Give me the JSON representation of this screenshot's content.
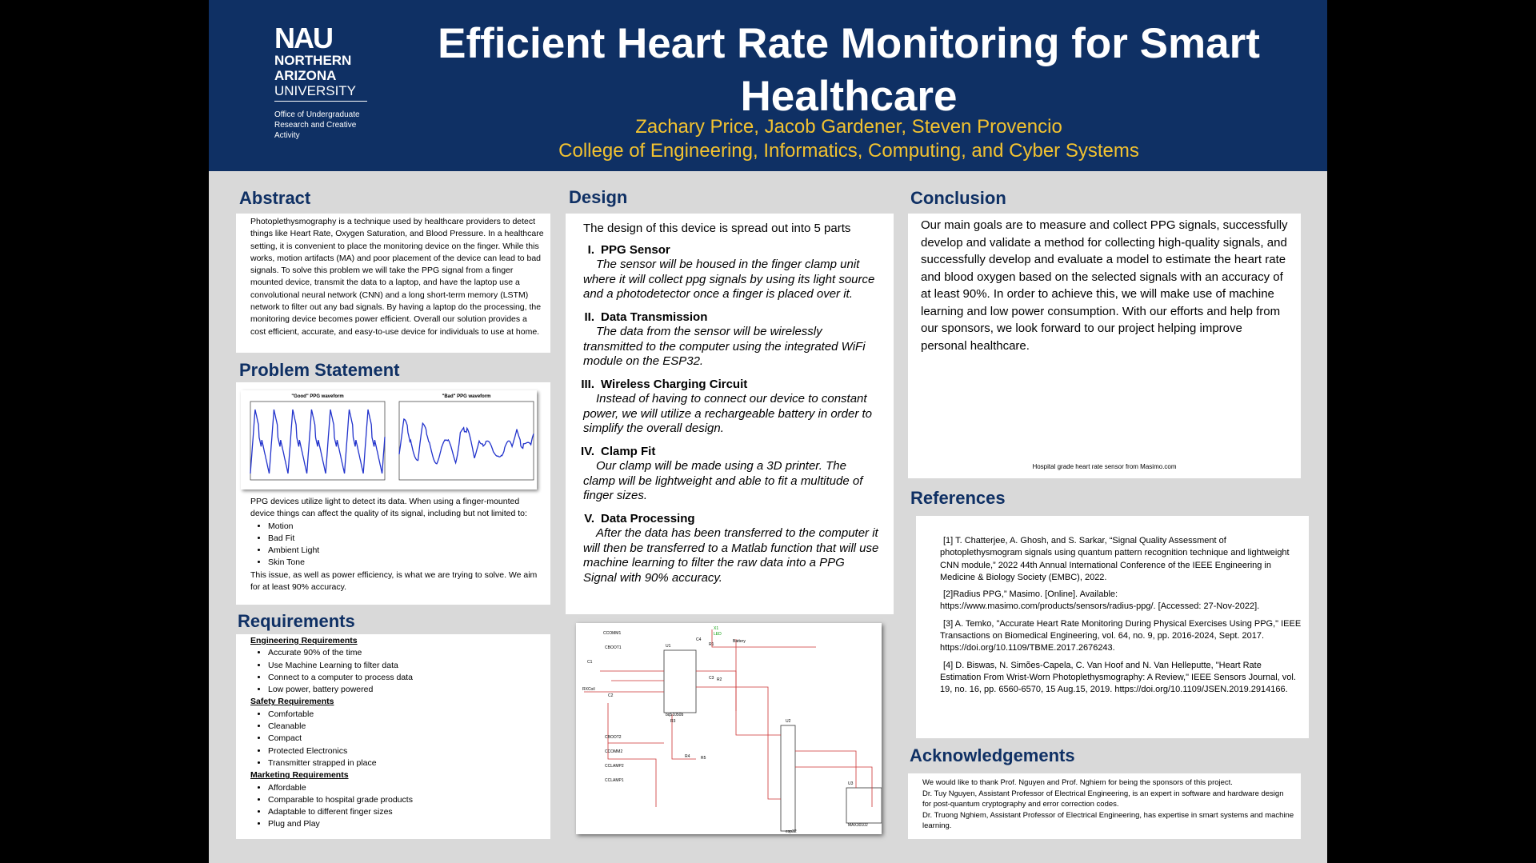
{
  "header": {
    "logo": {
      "mark": "NAU",
      "line1": "NORTHERN",
      "line2": "ARIZONA",
      "line3": "UNIVERSITY",
      "office": "Office of Undergraduate Research and Creative Activity"
    },
    "title": "Efficient Heart Rate Monitoring for Smart Healthcare",
    "authors": "Zachary Price, Jacob Gardener, Steven Provencio",
    "college": "College of Engineering, Informatics, Computing, and Cyber Systems"
  },
  "abstract": {
    "heading": "Abstract",
    "text": "Photoplethysmography is a technique used by healthcare providers to detect things like Heart Rate, Oxygen Saturation, and Blood Pressure. In a healthcare setting, it is convenient to place the monitoring device on the finger. While this works, motion artifacts (MA) and poor placement of the device can lead to bad signals. To solve this problem we will take the PPG signal from a finger mounted device, transmit the data to a laptop, and have the laptop use a convolutional neural network (CNN) and a long short-term memory (LSTM) network to filter out any bad signals. By having a laptop do the processing, the monitoring device becomes power efficient. Overall our solution provides a cost efficient, accurate, and easy-to-use device for individuals to use at home."
  },
  "problem": {
    "heading": "Problem Statement",
    "plots": [
      "\"Good\" PPG waveform",
      "\"Bad\" PPG waveform"
    ],
    "intro": "PPG devices utilize light to detect its data. When using a finger-mounted device things can affect the quality of its signal, including but not limited to:",
    "items": [
      "Motion",
      "Bad Fit",
      "Ambient Light",
      "Skin Tone"
    ],
    "outro": "This issue, as well as power efficiency, is what we are trying to solve. We aim for at least 90% accuracy."
  },
  "requirements": {
    "heading": "Requirements",
    "groups": [
      {
        "title": "Engineering Requirements",
        "items": [
          "Accurate 90% of the time",
          "Use Machine Learning to filter data",
          "Connect to a computer to process data",
          "Low power, battery powered"
        ]
      },
      {
        "title": "Safety Requirements",
        "items": [
          "Comfortable",
          "Cleanable",
          "Compact",
          "Protected Electronics",
          "Transmitter strapped in place"
        ]
      },
      {
        "title": "Marketing Requirements",
        "items": [
          "Affordable",
          "Comparable to hospital grade products",
          "Adaptable to different finger sizes",
          "Plug and Play"
        ]
      }
    ]
  },
  "design": {
    "heading": "Design",
    "intro": "The design of this device is spread out into 5 parts",
    "parts": [
      {
        "num": "I.",
        "title": "PPG Sensor",
        "text": "The sensor will be housed in the finger clamp unit where it will collect ppg signals by using its light source and a photodetector once a finger is placed over it."
      },
      {
        "num": "II.",
        "title": "Data Transmission",
        "text": "The data from the sensor will be wirelessly transmitted to the computer using the integrated WiFi module on the ESP32."
      },
      {
        "num": "III.",
        "title": "Wireless Charging Circuit",
        "text": "Instead of having to connect our device to constant power, we will utilize a rechargeable battery in order to simplify the overall design."
      },
      {
        "num": "IV.",
        "title": "Clamp Fit",
        "text": "Our clamp will be made using a 3D printer. The clamp will be lightweight and able to fit a multitude of finger sizes."
      },
      {
        "num": "V.",
        "title": "Data Processing",
        "text": "After the data has been transferred to the computer it will then be transferred to a Matlab function that will use machine learning to filter the raw data into a PPG Signal with 90% accuracy."
      }
    ],
    "circuit_labels": [
      "CCOMM1",
      "CBOOT1",
      "C1",
      "RXCoil",
      "C2",
      "CBOOT2",
      "CCOMM2",
      "CCLAMP2",
      "CCLAMP1",
      "U1",
      "bq51050b",
      "R3",
      "R4",
      "R5",
      "C4",
      "X1",
      "LED",
      "Battery",
      "R1",
      "C3",
      "R2",
      "U2",
      "esp32",
      "U3",
      "MAX30102"
    ]
  },
  "conclusion": {
    "heading": "Conclusion",
    "text": "Our main goals are to measure and collect PPG signals, successfully develop and validate a method for collecting high-quality signals, and successfully develop and evaluate a model to estimate the heart rate and blood oxygen based on the selected signals with an accuracy of at least 90%. In order to achieve this, we will make use of machine learning and low power consumption. With our efforts and help from our sponsors, we look forward to our project helping improve personal healthcare.",
    "caption": "Hospital grade heart rate sensor from Masimo.com"
  },
  "references": {
    "heading": "References",
    "items": [
      "[1] T. Chatterjee, A. Ghosh, and S. Sarkar, “Signal Quality Assessment of photoplethysmogram signals using quantum pattern recognition technique and lightweight CNN module,” 2022 44th Annual International Conference of the IEEE Engineering in Medicine & Biology Society (EMBC), 2022.",
      "[2]Radius PPG,” Masimo. [Online]. Available: https://www.masimo.com/products/sensors/radius-ppg/. [Accessed: 27-Nov-2022].",
      "[3] A. Temko, \"Accurate Heart Rate Monitoring During Physical Exercises Using PPG,\" IEEE Transactions on Biomedical Engineering, vol. 64, no. 9, pp. 2016-2024, Sept. 2017. https://doi.org/10.1109/TBME.2017.2676243.",
      "[4] D. Biswas, N. Simões-Capela, C. Van Hoof and N. Van Helleputte, \"Heart Rate Estimation From Wrist-Worn Photoplethysmography: A Review,\" IEEE Sensors Journal, vol. 19, no. 16, pp. 6560-6570, 15 Aug.15, 2019. https://doi.org/10.1109/JSEN.2019.2914166."
    ]
  },
  "acknowledgements": {
    "heading": "Acknowledgements",
    "items": [
      "We would like to  thank Prof. Nguyen and Prof. Nghiem for being the sponsors of this project.",
      "Dr. Tuy Nguyen, Assistant Professor of Electrical Engineering, is an expert in software and hardware design for post-quantum cryptography and error correction codes.",
      "Dr. Truong Nghiem, Assistant Professor of Electrical Engineering, has expertise in smart systems and machine learning."
    ]
  }
}
